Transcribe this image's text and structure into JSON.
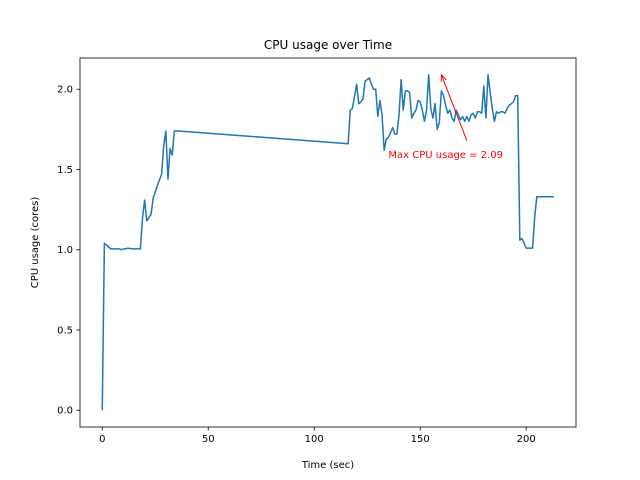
{
  "chart_data": {
    "type": "line",
    "title": "CPU usage over Time",
    "xlabel": "Time (sec)",
    "ylabel": "CPU usage (cores)",
    "xlim": [
      -10.5,
      223.5
    ],
    "ylim": [
      -0.1045,
      2.1945
    ],
    "xticks": [
      0,
      50,
      100,
      150,
      200
    ],
    "yticks": [
      0.0,
      0.5,
      1.0,
      1.5,
      2.0
    ],
    "xtick_labels": [
      "0",
      "50",
      "100",
      "150",
      "200"
    ],
    "ytick_labels": [
      "0.0",
      "0.5",
      "1.0",
      "1.5",
      "2.0"
    ],
    "grid": false,
    "series": [
      {
        "color": "#1f77b4",
        "x": [
          0,
          1,
          2,
          4,
          6,
          8,
          9,
          10,
          11,
          12,
          14,
          16,
          18,
          19,
          20,
          21,
          22,
          23,
          24,
          26,
          28,
          29,
          30,
          31,
          32,
          33,
          34,
          36,
          116,
          117,
          118,
          120,
          121,
          122,
          123,
          124,
          126,
          127,
          128,
          129,
          130,
          131,
          132,
          133,
          134,
          135,
          136,
          137,
          138,
          139,
          140,
          141,
          142,
          143,
          144,
          145,
          146,
          147,
          148,
          149,
          150,
          151,
          152,
          153,
          154,
          155,
          156,
          157,
          158,
          159,
          160,
          161,
          162,
          163,
          164,
          165,
          166,
          167,
          168,
          169,
          170,
          171,
          172,
          173,
          174,
          175,
          176,
          177,
          178,
          179,
          180,
          181,
          182,
          183,
          184,
          185,
          186,
          187,
          188,
          189,
          190,
          191,
          192,
          193,
          194,
          195,
          196,
          197,
          198,
          199,
          200,
          201,
          202,
          203,
          204,
          205,
          206,
          207,
          208,
          209,
          210,
          211,
          212,
          213
        ],
        "y": [
          0.0,
          1.04,
          1.03,
          1.005,
          1.005,
          1.005,
          1.0,
          1.005,
          1.005,
          1.01,
          1.005,
          1.005,
          1.005,
          1.2,
          1.31,
          1.18,
          1.2,
          1.22,
          1.32,
          1.4,
          1.47,
          1.65,
          1.74,
          1.44,
          1.63,
          1.59,
          1.74,
          1.74,
          1.66,
          1.87,
          1.88,
          2.03,
          1.91,
          1.92,
          1.94,
          2.05,
          2.07,
          2.03,
          2.0,
          2.0,
          1.83,
          1.93,
          1.84,
          1.62,
          1.69,
          1.7,
          1.73,
          1.76,
          1.72,
          1.72,
          1.84,
          2.06,
          1.87,
          1.99,
          1.99,
          1.98,
          1.82,
          1.85,
          1.87,
          1.93,
          1.92,
          1.87,
          1.8,
          1.87,
          2.09,
          1.88,
          1.82,
          1.91,
          1.75,
          1.79,
          1.99,
          1.96,
          1.9,
          1.85,
          1.87,
          1.82,
          1.8,
          1.87,
          1.84,
          1.81,
          1.83,
          1.8,
          1.83,
          1.8,
          1.84,
          1.85,
          1.82,
          1.86,
          1.86,
          1.85,
          2.02,
          1.82,
          2.09,
          1.98,
          1.88,
          1.8,
          1.86,
          1.85,
          1.86,
          1.86,
          1.85,
          1.88,
          1.9,
          1.91,
          1.92,
          1.96,
          1.96,
          1.06,
          1.07,
          1.04,
          1.01,
          1.01,
          1.01,
          1.01,
          1.2,
          1.33,
          1.33,
          1.33,
          1.33,
          1.33,
          1.33,
          1.33,
          1.33,
          1.33
        ]
      }
    ],
    "annotation": {
      "text": "Max CPU usage = 2.09",
      "color": "#ff0000",
      "text_x": 135,
      "text_y": 1.57,
      "arrow_from_x": 172,
      "arrow_from_y": 1.68,
      "arrow_to_x": 160,
      "arrow_to_y": 2.09
    }
  }
}
